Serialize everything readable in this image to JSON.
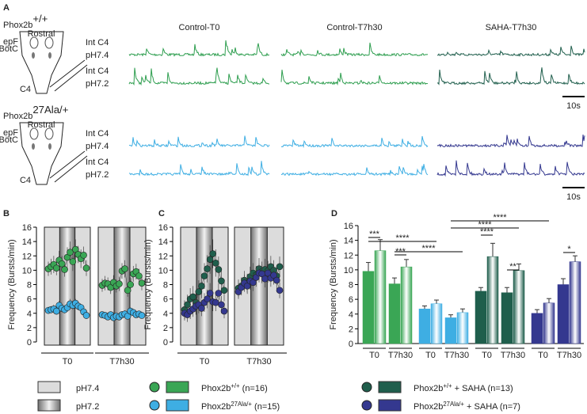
{
  "panel_labels": [
    "A",
    "B",
    "C",
    "D"
  ],
  "panel_a": {
    "genotypes": [
      {
        "base": "Phox2b",
        "sup": "+/+"
      },
      {
        "base": "Phox2b",
        "sup": "27Ala/+"
      }
    ],
    "conditions": [
      "Control-T0",
      "Control-T7h30",
      "SAHA-T7h30"
    ],
    "row_labels": [
      [
        "Int C4",
        "pH7.4"
      ],
      [
        "Int C4",
        "pH7.2"
      ]
    ],
    "scale_bar": "10s",
    "schematic": {
      "rostral": "Rostral",
      "epf": "epF",
      "prebotc": "preBötC",
      "c4": "C4"
    }
  },
  "chart_data": [
    {
      "type": "scatter",
      "ylabel": "Frequency (Bursts/min)",
      "ylim": [
        0,
        16
      ],
      "yticks": [
        0,
        2,
        4,
        6,
        8,
        10,
        12,
        14,
        16
      ],
      "groups": [
        {
          "label": "T0",
          "series": [
            {
              "color": "#3aa655",
              "values": [
                10.2,
                10.5,
                10.8,
                10.3,
                11.4,
                10.9,
                10.1,
                11.8,
                12.5,
                11.2,
                12.9,
                12.2,
                11.6,
                12.1,
                10.3
              ],
              "errors": [
                1.0,
                1.1,
                1.2,
                1.0,
                1.3,
                1.1,
                1.0,
                1.4,
                1.5,
                1.3,
                1.4,
                1.2,
                1.3,
                1.2,
                1.1
              ]
            },
            {
              "color": "#3eaee3",
              "values": [
                4.4,
                4.5,
                4.6,
                4.3,
                5.1,
                4.7,
                4.5,
                4.8,
                5.3,
                5.1,
                5.4,
                5.0,
                4.8,
                4.2,
                3.7
              ],
              "errors": [
                0.5,
                0.5,
                0.6,
                0.5,
                0.6,
                0.5,
                0.5,
                0.6,
                0.7,
                0.6,
                0.6,
                0.6,
                0.5,
                0.5,
                0.5
              ]
            }
          ]
        },
        {
          "label": "T7h30",
          "series": [
            {
              "color": "#3aa655",
              "values": [
                7.9,
                8.2,
                8.1,
                7.6,
                8.3,
                7.8,
                8.1,
                9.9,
                10.2,
                7.2,
                8.0,
                9.5,
                9.8,
                9.2,
                8.2
              ],
              "errors": [
                0.9,
                1.0,
                0.9,
                0.9,
                1.0,
                0.9,
                1.0,
                1.1,
                1.2,
                0.9,
                1.0,
                1.1,
                1.1,
                1.0,
                1.0
              ]
            },
            {
              "color": "#3eaee3",
              "values": [
                3.8,
                3.7,
                3.5,
                3.8,
                3.4,
                3.6,
                3.5,
                3.8,
                3.9,
                3.6,
                4.3,
                4.1,
                3.8,
                3.9,
                3.7
              ],
              "errors": [
                0.4,
                0.4,
                0.4,
                0.4,
                0.4,
                0.4,
                0.4,
                0.5,
                0.5,
                0.4,
                0.5,
                0.5,
                0.4,
                0.4,
                0.4
              ]
            }
          ]
        }
      ]
    },
    {
      "type": "scatter",
      "ylabel": "Frequency (Bursts/min)",
      "ylim": [
        0,
        16
      ],
      "yticks": [
        0,
        2,
        4,
        6,
        8,
        10,
        12,
        14,
        16
      ],
      "groups": [
        {
          "label": "T0",
          "series": [
            {
              "color": "#1f5e4c",
              "values": [
                4.5,
                5.2,
                6.0,
                6.3,
                5.5,
                7.0,
                7.8,
                9.2,
                10.2,
                11.5,
                12.3,
                11.0,
                10.1,
                8.5,
                7.2
              ],
              "errors": [
                1.3,
                1.4,
                1.5,
                1.5,
                1.4,
                1.6,
                1.7,
                1.8,
                1.9,
                2.0,
                2.0,
                1.9,
                1.8,
                1.7,
                1.5
              ]
            },
            {
              "color": "#34388f",
              "values": [
                4.0,
                3.8,
                4.3,
                4.6,
                5.0,
                5.2,
                4.7,
                5.5,
                6.0,
                6.8,
                5.6,
                5.5,
                6.8,
                5.2,
                4.3
              ],
              "errors": [
                1.0,
                1.0,
                1.1,
                1.1,
                1.2,
                1.2,
                1.1,
                1.3,
                1.3,
                1.4,
                1.3,
                1.2,
                1.4,
                1.2,
                1.0
              ]
            }
          ]
        },
        {
          "label": "T7h30",
          "series": [
            {
              "color": "#1f5e4c",
              "values": [
                7.5,
                7.8,
                8.6,
                8.2,
                9.1,
                9.6,
                9.3,
                10.2,
                9.8,
                10.1,
                9.9,
                10.5,
                10.0,
                9.2,
                10.5
              ],
              "errors": [
                1.2,
                1.2,
                1.3,
                1.3,
                1.4,
                1.4,
                1.3,
                1.5,
                1.4,
                1.5,
                1.4,
                1.5,
                1.4,
                1.3,
                1.4
              ]
            },
            {
              "color": "#34388f",
              "values": [
                7.0,
                7.6,
                8.2,
                7.8,
                8.5,
                8.3,
                9.0,
                9.6,
                9.5,
                8.8,
                9.6,
                8.9,
                9.3,
                8.6,
                7.2
              ],
              "errors": [
                1.0,
                1.1,
                1.2,
                1.1,
                1.2,
                1.2,
                1.3,
                1.3,
                1.3,
                1.2,
                1.3,
                1.2,
                1.3,
                1.2,
                1.1
              ]
            }
          ]
        }
      ]
    },
    {
      "type": "bar",
      "ylabel": "Frequency (Bursts/min)",
      "ylim": [
        0,
        16
      ],
      "yticks": [
        0,
        2,
        4,
        6,
        8,
        10,
        12,
        14,
        16
      ],
      "groups": [
        {
          "color": "#3aa655",
          "categories": [
            "T0",
            "T7h30"
          ],
          "ph74": [
            9.8,
            8.1
          ],
          "ph72": [
            12.6,
            10.4
          ],
          "err74": [
            1.2,
            0.8
          ],
          "err72": [
            1.5,
            1.0
          ]
        },
        {
          "color": "#3eaee3",
          "categories": [
            "T0",
            "T7h30"
          ],
          "ph74": [
            4.7,
            3.5
          ],
          "ph72": [
            5.4,
            4.2
          ],
          "err74": [
            0.4,
            0.4
          ],
          "err72": [
            0.5,
            0.5
          ]
        },
        {
          "color": "#1f5e4c",
          "categories": [
            "T0",
            "T7h30"
          ],
          "ph74": [
            7.1,
            6.9
          ],
          "ph72": [
            11.8,
            9.9
          ],
          "err74": [
            0.5,
            0.7
          ],
          "err72": [
            1.8,
            0.9
          ]
        },
        {
          "color": "#34388f",
          "categories": [
            "T0",
            "T7h30"
          ],
          "ph74": [
            4.1,
            8.0
          ],
          "ph72": [
            5.5,
            11.1
          ],
          "err74": [
            0.5,
            0.8
          ],
          "err72": [
            0.6,
            0.8
          ]
        }
      ],
      "significance": [
        "***",
        "***",
        "****",
        "****",
        "****",
        "****",
        "****",
        "**",
        "*"
      ]
    }
  ],
  "legend": {
    "ph": [
      "pH7.4",
      "pH7.2"
    ],
    "groups": [
      {
        "base": "Phox2b",
        "sup": "+/+",
        "suffix": " (n=16)",
        "color": "#3aa655"
      },
      {
        "base": "Phox2b",
        "sup": "27Ala/+",
        "suffix": " (n=15)",
        "color": "#3eaee3"
      },
      {
        "base": "Phox2b",
        "sup": "+/+",
        "suffix": " + SAHA (n=13)",
        "color": "#1f5e4c"
      },
      {
        "base": "Phox2b",
        "sup": "27Ala/+",
        "suffix": " + SAHA (n=7)",
        "color": "#34388f"
      }
    ]
  }
}
